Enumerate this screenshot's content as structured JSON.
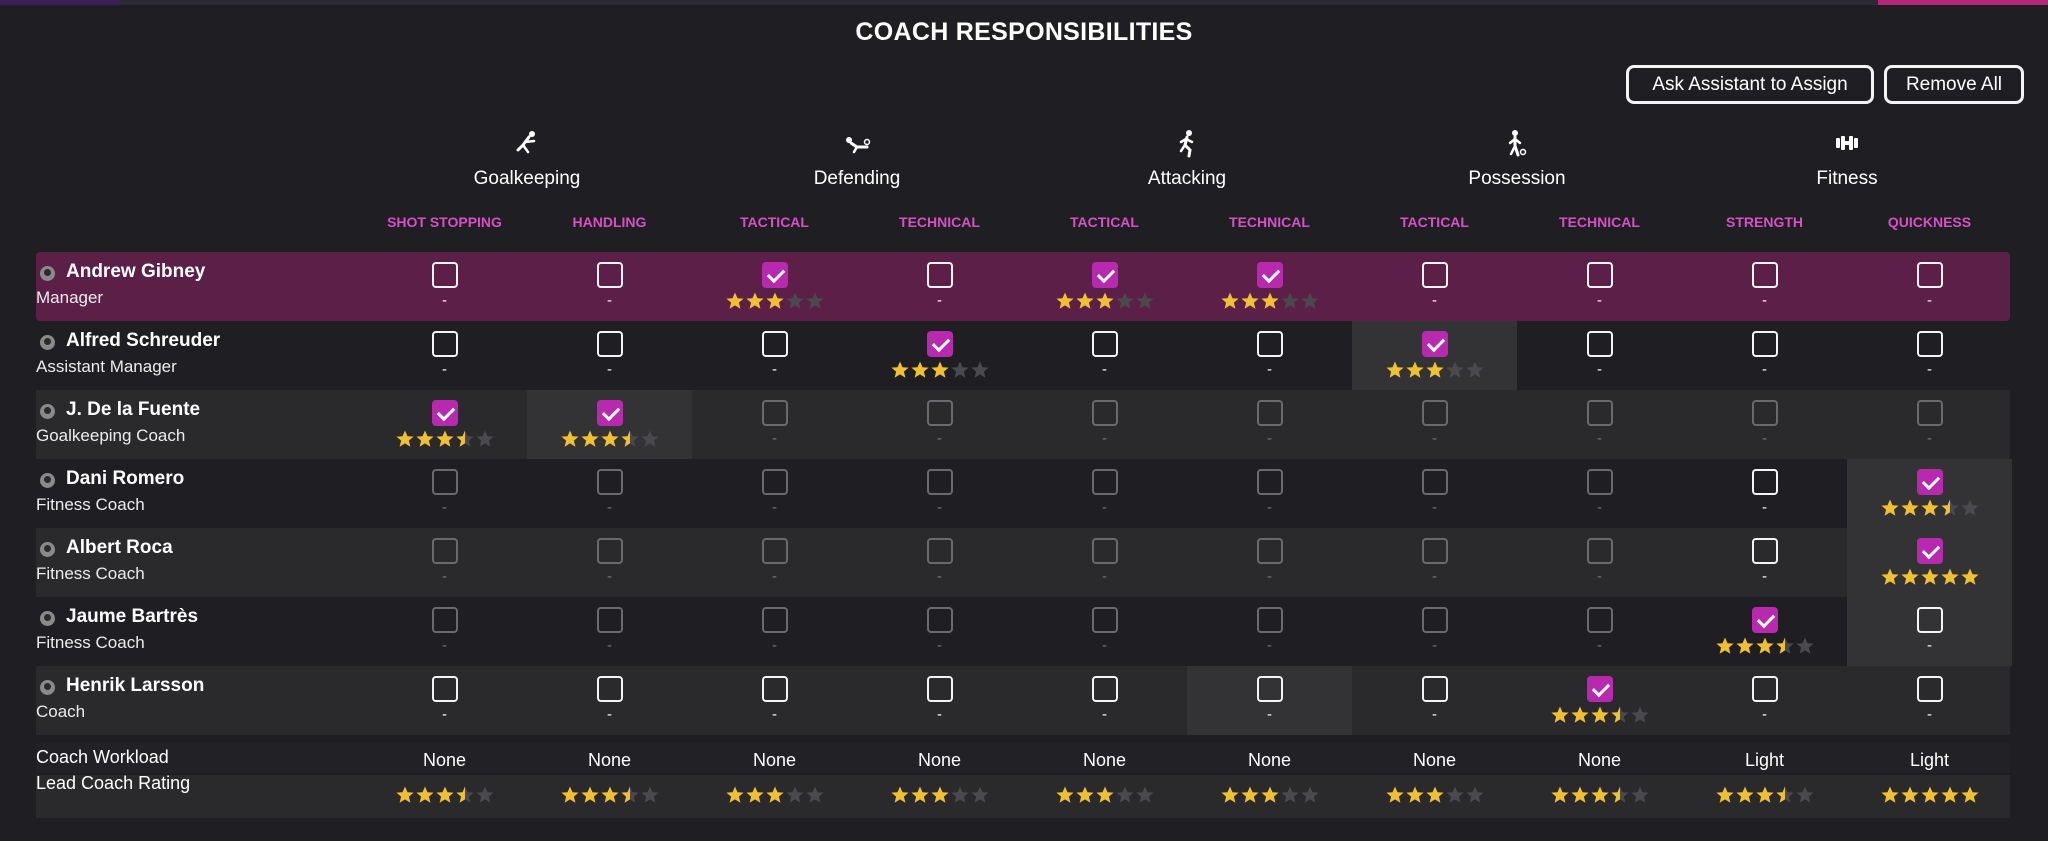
{
  "title": "COACH RESPONSIBILITIES",
  "buttons": {
    "assign": "Ask Assistant to Assign",
    "remove": "Remove All"
  },
  "categories": [
    {
      "label": "Goalkeeping",
      "icon": "goalkeeper-dive-icon"
    },
    {
      "label": "Defending",
      "icon": "slide-tackle-icon"
    },
    {
      "label": "Attacking",
      "icon": "running-player-icon"
    },
    {
      "label": "Possession",
      "icon": "dribbling-player-icon"
    },
    {
      "label": "Fitness",
      "icon": "dumbbell-icon"
    }
  ],
  "subcategories": [
    "SHOT STOPPING",
    "HANDLING",
    "TACTICAL",
    "TECHNICAL",
    "TACTICAL",
    "TECHNICAL",
    "TACTICAL",
    "TECHNICAL",
    "STRENGTH",
    "QUICKNESS"
  ],
  "dash": "-",
  "coaches": [
    {
      "name": "Andrew Gibney",
      "role": "Manager",
      "highlight": true,
      "cells": [
        {
          "c": false,
          "s": null
        },
        {
          "c": false,
          "s": null
        },
        {
          "c": true,
          "s": 3
        },
        {
          "c": false,
          "s": null
        },
        {
          "c": true,
          "s": 3
        },
        {
          "c": true,
          "s": 3
        },
        {
          "c": false,
          "s": null
        },
        {
          "c": false,
          "s": null
        },
        {
          "c": false,
          "s": null
        },
        {
          "c": false,
          "s": null
        }
      ]
    },
    {
      "name": "Alfred Schreuder",
      "role": "Assistant Manager",
      "cells": [
        {
          "c": false,
          "s": null
        },
        {
          "c": false,
          "s": null
        },
        {
          "c": false,
          "s": null
        },
        {
          "c": true,
          "s": 3
        },
        {
          "c": false,
          "s": null
        },
        {
          "c": false,
          "s": null
        },
        {
          "c": true,
          "s": 3,
          "bg": true
        },
        {
          "c": false,
          "s": null
        },
        {
          "c": false,
          "s": null
        },
        {
          "c": false,
          "s": null
        }
      ]
    },
    {
      "name": "J. De la Fuente",
      "role": "Goalkeeping Coach",
      "cells": [
        {
          "c": true,
          "s": 3.5
        },
        {
          "c": true,
          "s": 3.5,
          "bg": true
        },
        {
          "c": false,
          "s": null,
          "dim": true
        },
        {
          "c": false,
          "s": null,
          "dim": true
        },
        {
          "c": false,
          "s": null,
          "dim": true
        },
        {
          "c": false,
          "s": null,
          "dim": true
        },
        {
          "c": false,
          "s": null,
          "dim": true
        },
        {
          "c": false,
          "s": null,
          "dim": true
        },
        {
          "c": false,
          "s": null,
          "dim": true
        },
        {
          "c": false,
          "s": null,
          "dim": true
        }
      ]
    },
    {
      "name": "Dani Romero",
      "role": "Fitness Coach",
      "cells": [
        {
          "c": false,
          "s": null,
          "dim": true
        },
        {
          "c": false,
          "s": null,
          "dim": true
        },
        {
          "c": false,
          "s": null,
          "dim": true
        },
        {
          "c": false,
          "s": null,
          "dim": true
        },
        {
          "c": false,
          "s": null,
          "dim": true
        },
        {
          "c": false,
          "s": null,
          "dim": true
        },
        {
          "c": false,
          "s": null,
          "dim": true
        },
        {
          "c": false,
          "s": null,
          "dim": true
        },
        {
          "c": false,
          "s": null
        },
        {
          "c": true,
          "s": 3.5,
          "bg": true
        }
      ]
    },
    {
      "name": "Albert Roca",
      "role": "Fitness Coach",
      "cells": [
        {
          "c": false,
          "s": null,
          "dim": true
        },
        {
          "c": false,
          "s": null,
          "dim": true
        },
        {
          "c": false,
          "s": null,
          "dim": true
        },
        {
          "c": false,
          "s": null,
          "dim": true
        },
        {
          "c": false,
          "s": null,
          "dim": true
        },
        {
          "c": false,
          "s": null,
          "dim": true
        },
        {
          "c": false,
          "s": null,
          "dim": true
        },
        {
          "c": false,
          "s": null,
          "dim": true
        },
        {
          "c": false,
          "s": null
        },
        {
          "c": true,
          "s": 5,
          "bg": true
        }
      ]
    },
    {
      "name": "Jaume Bartrès",
      "role": "Fitness Coach",
      "cells": [
        {
          "c": false,
          "s": null,
          "dim": true
        },
        {
          "c": false,
          "s": null,
          "dim": true
        },
        {
          "c": false,
          "s": null,
          "dim": true
        },
        {
          "c": false,
          "s": null,
          "dim": true
        },
        {
          "c": false,
          "s": null,
          "dim": true
        },
        {
          "c": false,
          "s": null,
          "dim": true
        },
        {
          "c": false,
          "s": null,
          "dim": true
        },
        {
          "c": false,
          "s": null,
          "dim": true
        },
        {
          "c": true,
          "s": 3.5
        },
        {
          "c": false,
          "s": null,
          "bg": true
        }
      ]
    },
    {
      "name": "Henrik Larsson",
      "role": "Coach",
      "cells": [
        {
          "c": false,
          "s": null
        },
        {
          "c": false,
          "s": null
        },
        {
          "c": false,
          "s": null
        },
        {
          "c": false,
          "s": null
        },
        {
          "c": false,
          "s": null
        },
        {
          "c": false,
          "s": null,
          "bg": true
        },
        {
          "c": false,
          "s": null
        },
        {
          "c": true,
          "s": 3.5
        },
        {
          "c": false,
          "s": null
        },
        {
          "c": false,
          "s": null
        }
      ]
    }
  ],
  "workload": {
    "label": "Coach Workload",
    "values": [
      "None",
      "None",
      "None",
      "None",
      "None",
      "None",
      "None",
      "None",
      "Light",
      "Light"
    ]
  },
  "lead_rating": {
    "label": "Lead Coach Rating",
    "values": [
      3.5,
      3.5,
      3,
      3,
      3,
      3,
      3,
      3.5,
      3.5,
      5
    ]
  },
  "colors": {
    "accent": "#b72ab0",
    "header_pink": "#d84fc8",
    "highlight_row": "#5c1f48",
    "star_gold": "#f0c030",
    "star_empty": "#4a494d"
  }
}
